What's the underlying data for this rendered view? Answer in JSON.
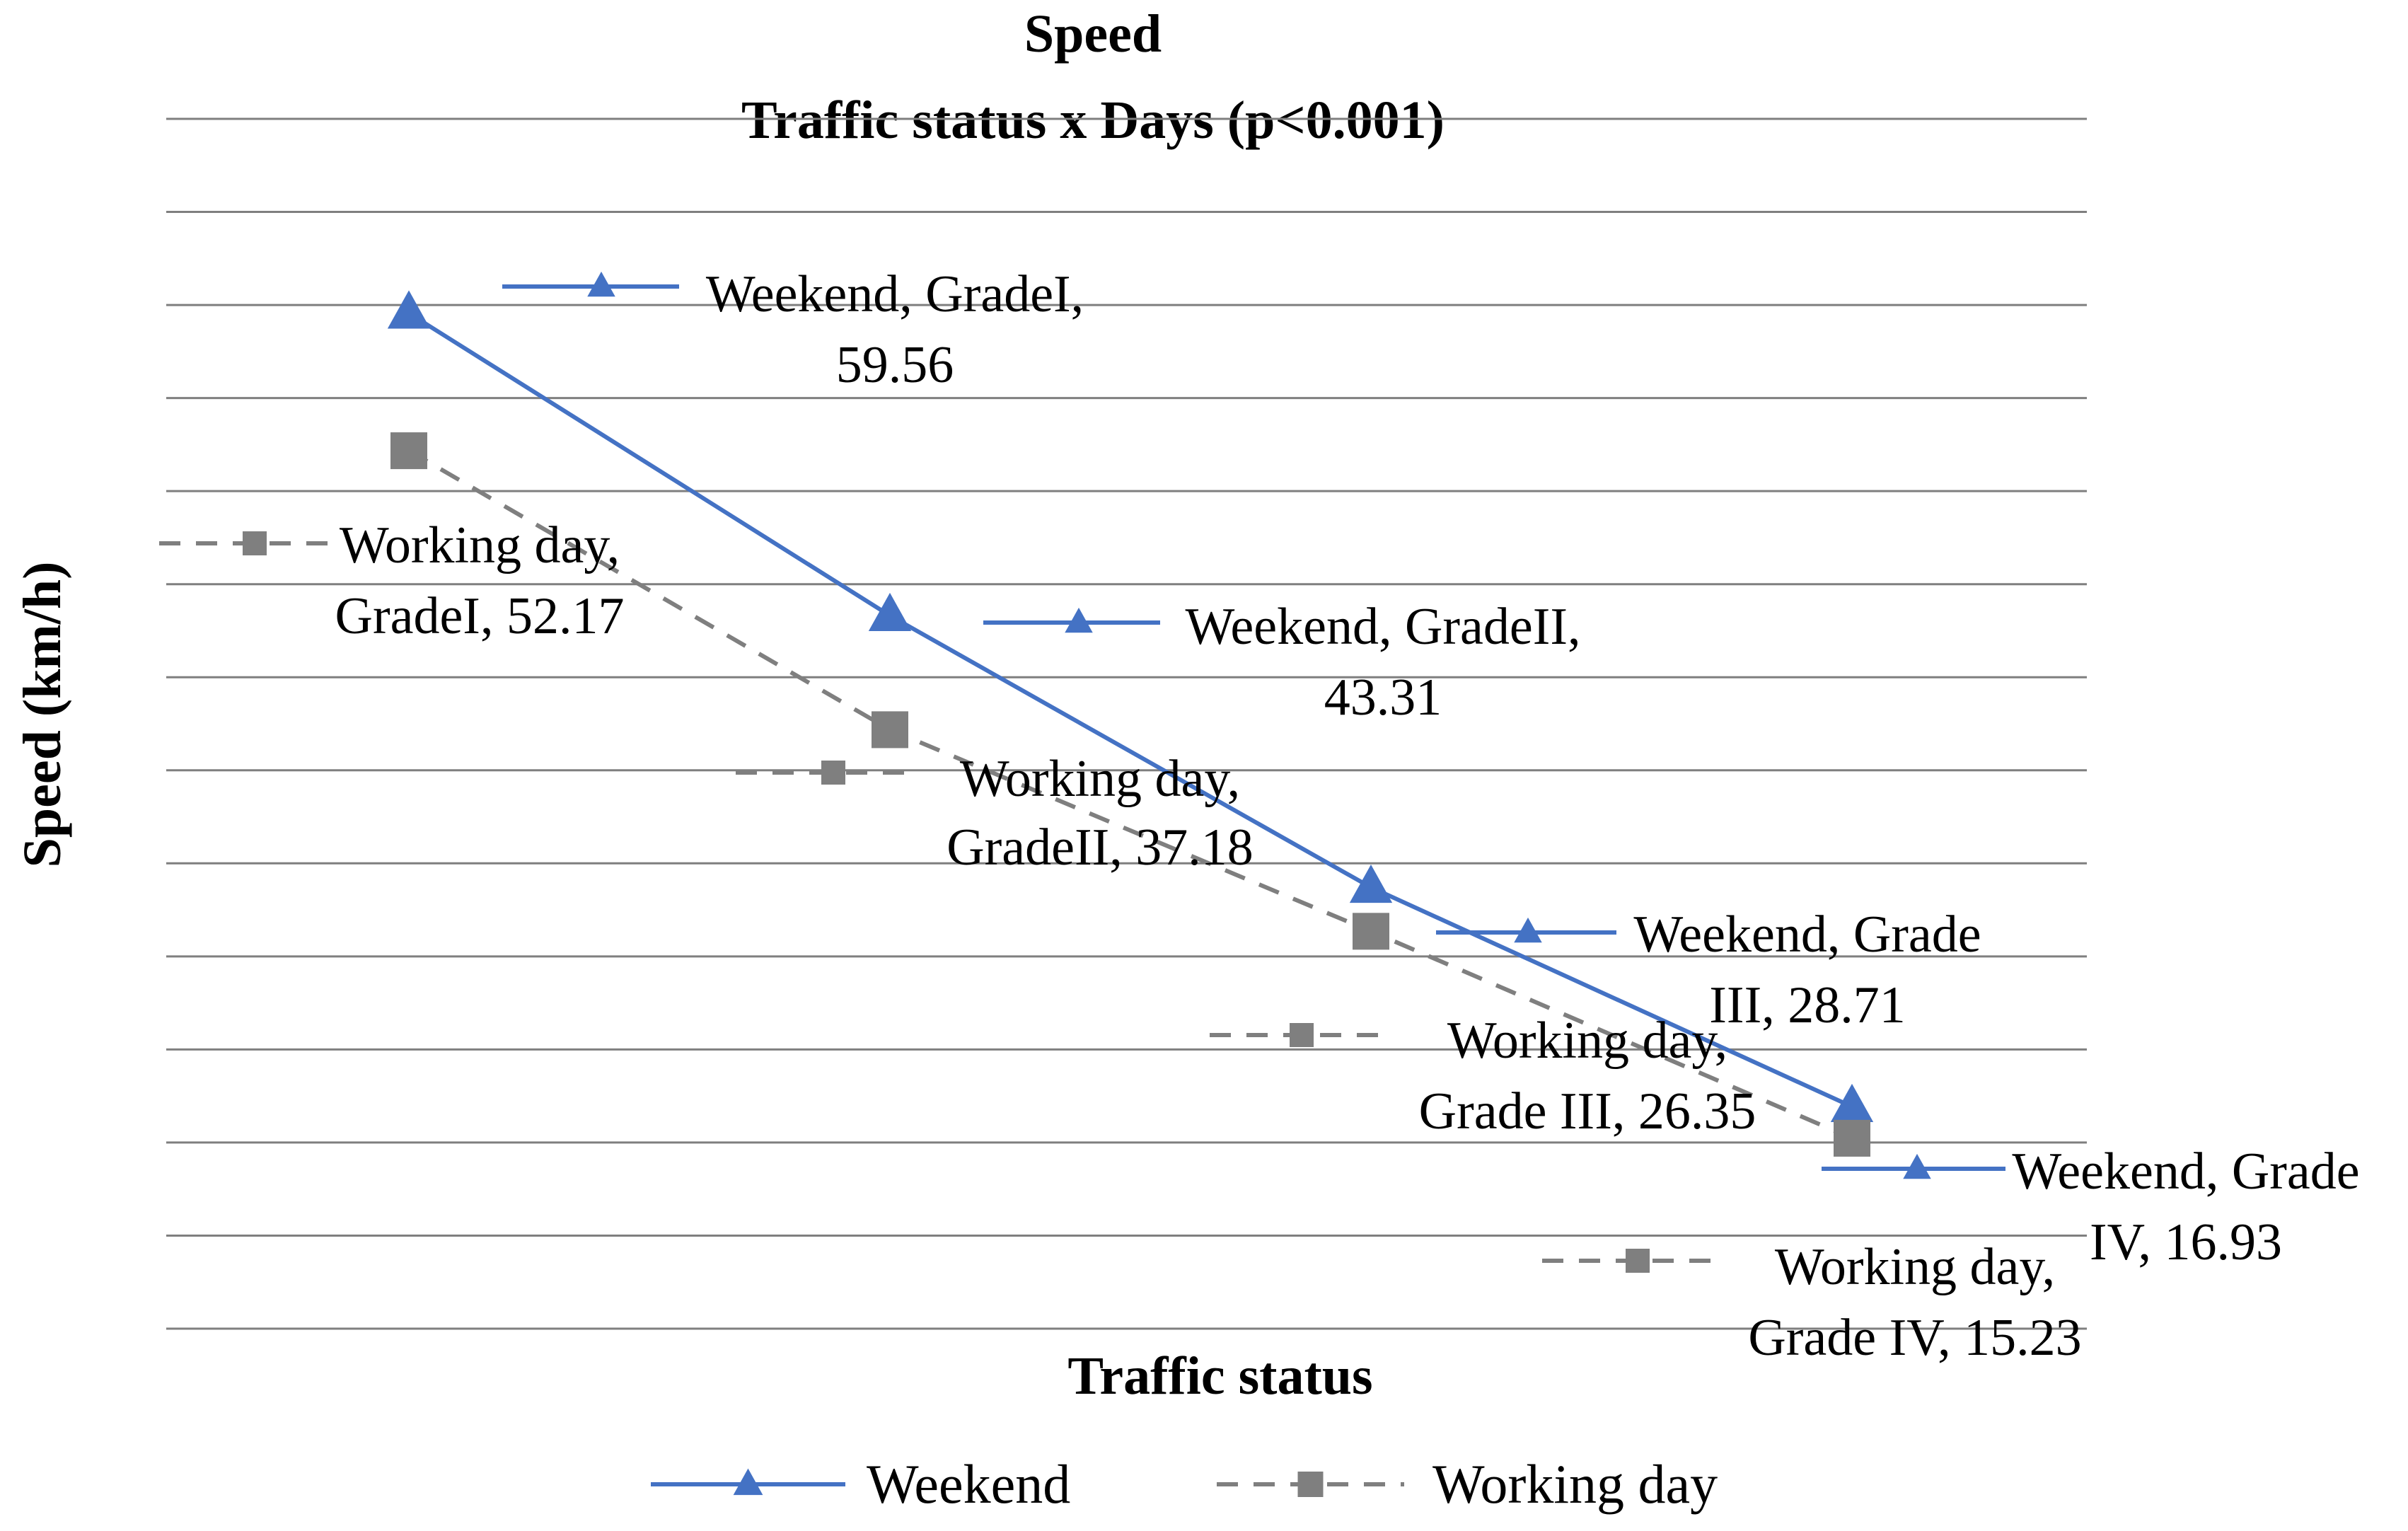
{
  "chart_data": {
    "type": "line",
    "title": "Speed",
    "subtitle": "Traffic status x Days (p<0.001)",
    "xlabel": "Traffic status",
    "ylabel": "Speed (km/h)",
    "categories": [
      "GradeI",
      "GradeII",
      "Grade III",
      "Grade IV"
    ],
    "ylim": [
      5,
      70
    ],
    "grid": true,
    "legend_position": "bottom",
    "series": [
      {
        "name": "Weekend",
        "values": [
          59.56,
          43.31,
          28.71,
          16.93
        ],
        "color": "#4472c4",
        "style": "solid",
        "marker": "triangle",
        "labels": [
          [
            "Weekend, GradeI,",
            "59.56"
          ],
          [
            "Weekend, GradeII,",
            "43.31"
          ],
          [
            "Weekend, Grade",
            "III, 28.71"
          ],
          [
            "Weekend, Grade",
            "IV, 16.93"
          ]
        ]
      },
      {
        "name": "Working day",
        "values": [
          52.17,
          37.18,
          26.35,
          15.23
        ],
        "color": "#7f7f7f",
        "style": "dashed",
        "marker": "square",
        "labels": [
          [
            "Working day,",
            "GradeI, 52.17"
          ],
          [
            "Working day,",
            "GradeII, 37.18"
          ],
          [
            "Working day,",
            "Grade III, 26.35"
          ],
          [
            "Working day,",
            "Grade IV, 15.23"
          ]
        ]
      }
    ]
  }
}
